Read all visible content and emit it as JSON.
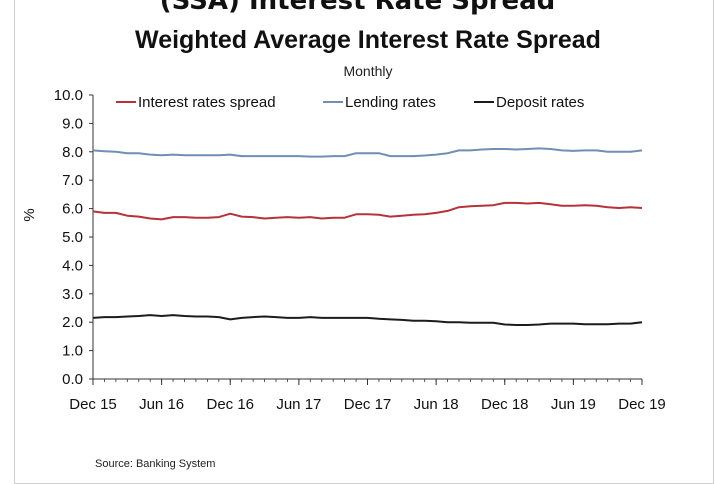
{
  "header_fragment": "(SSA) Interest Rate Spread",
  "source": "Source:  Banking System",
  "chart_data": {
    "type": "line",
    "title": "Weighted Average Interest Rate Spread",
    "subtitle": "Monthly",
    "ylabel": "%",
    "ylim": [
      0,
      10
    ],
    "yticks": [
      "0.0",
      "1.0",
      "2.0",
      "3.0",
      "4.0",
      "5.0",
      "6.0",
      "7.0",
      "8.0",
      "9.0",
      "10.0"
    ],
    "xticks": [
      "Dec 15",
      "Jun 16",
      "Dec 16",
      "Jun 17",
      "Dec 17",
      "Jun 18",
      "Dec 18",
      "Jun 19",
      "Dec 19"
    ],
    "x": [
      "Dec 15",
      "Jan 16",
      "Feb 16",
      "Mar 16",
      "Apr 16",
      "May 16",
      "Jun 16",
      "Jul 16",
      "Aug 16",
      "Sep 16",
      "Oct 16",
      "Nov 16",
      "Dec 16",
      "Jan 17",
      "Feb 17",
      "Mar 17",
      "Apr 17",
      "May 17",
      "Jun 17",
      "Jul 17",
      "Aug 17",
      "Sep 17",
      "Oct 17",
      "Nov 17",
      "Dec 17",
      "Jan 18",
      "Feb 18",
      "Mar 18",
      "Apr 18",
      "May 18",
      "Jun 18",
      "Jul 18",
      "Aug 18",
      "Sep 18",
      "Oct 18",
      "Nov 18",
      "Dec 18",
      "Jan 19",
      "Feb 19",
      "Mar 19",
      "Apr 19",
      "May 19",
      "Jun 19",
      "Jul 19",
      "Aug 19",
      "Sep 19",
      "Oct 19",
      "Nov 19",
      "Dec 19"
    ],
    "legend_position": "top",
    "grid": false,
    "series": [
      {
        "name": "Interest rates spread",
        "color": "#b7313a",
        "values": [
          5.9,
          5.85,
          5.85,
          5.75,
          5.72,
          5.65,
          5.62,
          5.7,
          5.7,
          5.68,
          5.68,
          5.7,
          5.82,
          5.72,
          5.7,
          5.65,
          5.68,
          5.7,
          5.68,
          5.7,
          5.65,
          5.68,
          5.68,
          5.8,
          5.8,
          5.78,
          5.72,
          5.75,
          5.78,
          5.8,
          5.85,
          5.92,
          6.05,
          6.08,
          6.1,
          6.12,
          6.2,
          6.2,
          6.18,
          6.2,
          6.15,
          6.1,
          6.1,
          6.12,
          6.1,
          6.05,
          6.02,
          6.05,
          6.02
        ]
      },
      {
        "name": "Lending rates",
        "color": "#6f8fb3",
        "values": [
          8.05,
          8.02,
          8.0,
          7.95,
          7.95,
          7.9,
          7.88,
          7.9,
          7.88,
          7.88,
          7.88,
          7.88,
          7.9,
          7.85,
          7.85,
          7.85,
          7.85,
          7.85,
          7.85,
          7.83,
          7.83,
          7.85,
          7.85,
          7.95,
          7.95,
          7.95,
          7.85,
          7.85,
          7.85,
          7.87,
          7.9,
          7.95,
          8.05,
          8.05,
          8.08,
          8.1,
          8.1,
          8.08,
          8.1,
          8.12,
          8.1,
          8.05,
          8.03,
          8.05,
          8.05,
          8.0,
          8.0,
          8.0,
          8.05
        ]
      },
      {
        "name": "Deposit rates",
        "color": "#1c1c1c",
        "values": [
          2.15,
          2.18,
          2.18,
          2.2,
          2.22,
          2.25,
          2.22,
          2.25,
          2.22,
          2.2,
          2.2,
          2.18,
          2.1,
          2.15,
          2.18,
          2.2,
          2.18,
          2.15,
          2.15,
          2.18,
          2.15,
          2.15,
          2.15,
          2.15,
          2.15,
          2.12,
          2.1,
          2.08,
          2.05,
          2.05,
          2.03,
          2.0,
          2.0,
          1.98,
          1.98,
          1.98,
          1.92,
          1.9,
          1.9,
          1.92,
          1.95,
          1.95,
          1.95,
          1.93,
          1.93,
          1.93,
          1.95,
          1.95,
          2.0
        ]
      }
    ]
  }
}
